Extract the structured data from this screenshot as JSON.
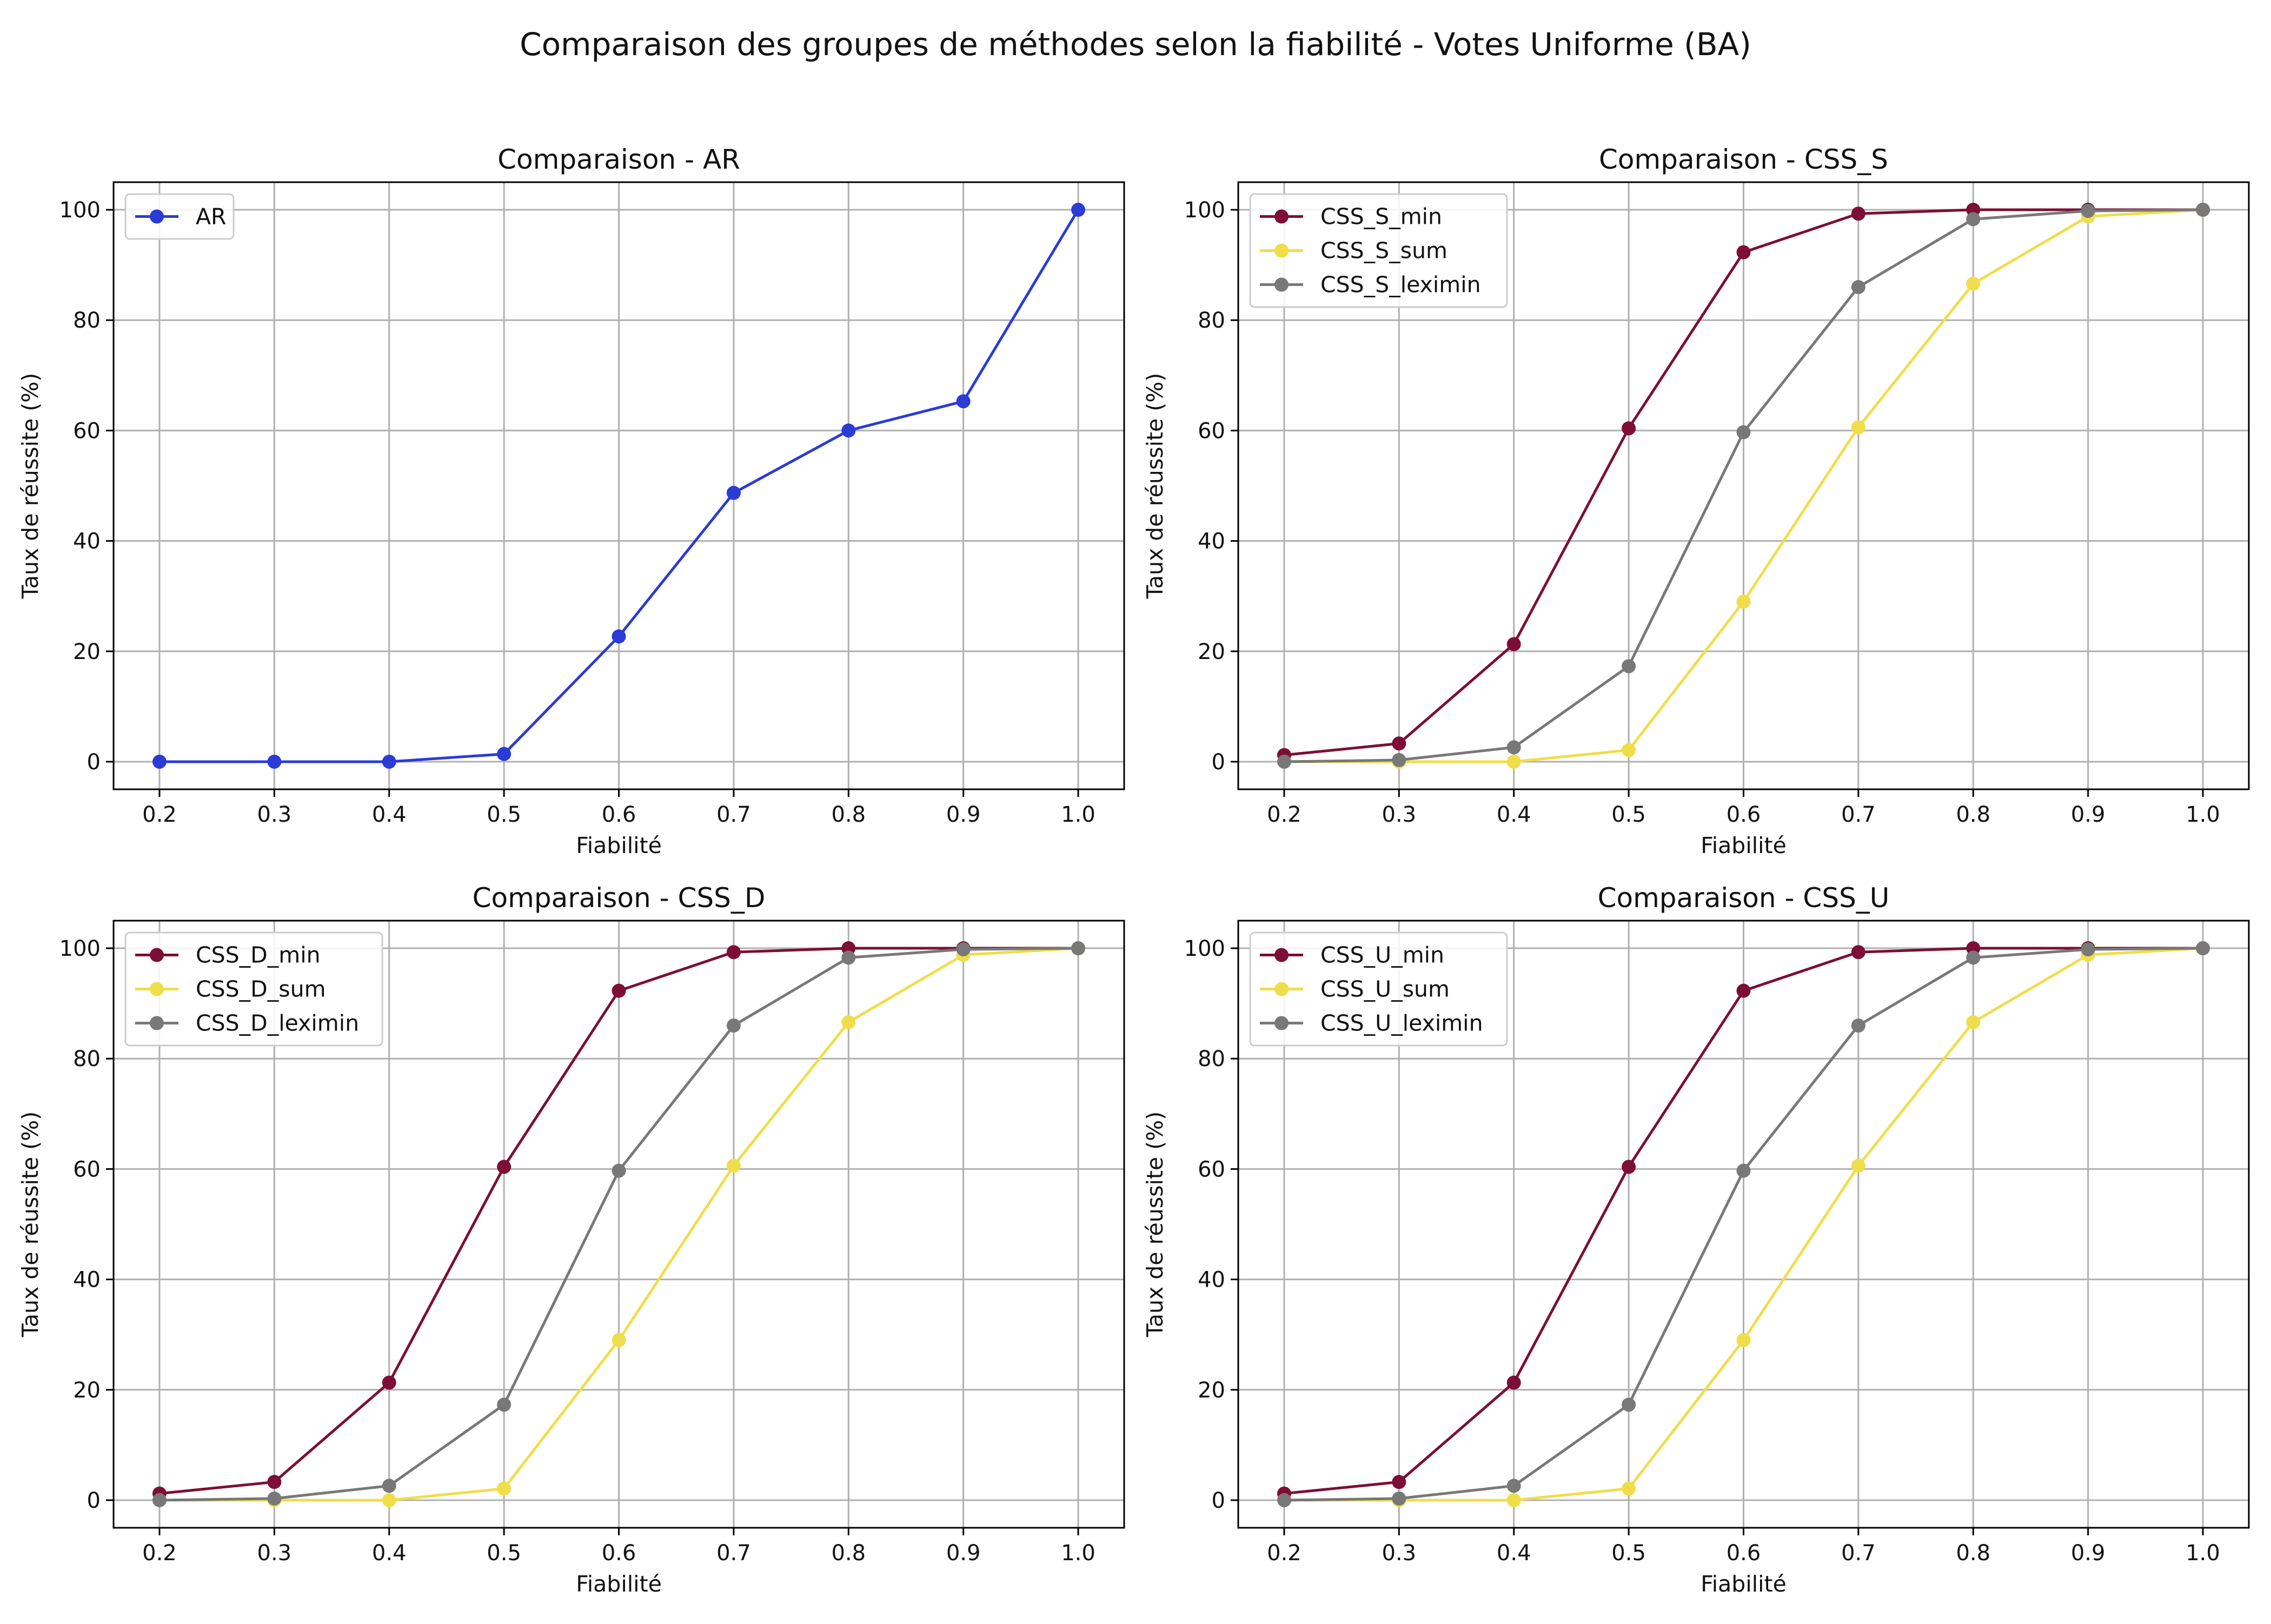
{
  "suptitle": "Comparaison des groupes de méthodes selon la fiabilité - Votes Uniforme (BA)",
  "chart_data": [
    {
      "type": "line",
      "title": "Comparaison - AR",
      "xlabel": "Fiabilité",
      "ylabel": "Taux de réussite (%)",
      "x": [
        0.2,
        0.3,
        0.4,
        0.5,
        0.6,
        0.7,
        0.8,
        0.9,
        1.0
      ],
      "xticks": [
        "0.2",
        "0.3",
        "0.4",
        "0.5",
        "0.6",
        "0.7",
        "0.8",
        "0.9",
        "1.0"
      ],
      "yticks": [
        "0",
        "20",
        "40",
        "60",
        "80",
        "100"
      ],
      "xlim": [
        0.16,
        1.04
      ],
      "ylim": [
        -5,
        105
      ],
      "grid": true,
      "legend_position": "upper-left",
      "series": [
        {
          "name": "AR",
          "color": "#2b3bd6",
          "values": [
            0,
            0,
            0,
            1.4,
            22.7,
            48.7,
            60,
            65.3,
            100
          ]
        }
      ]
    },
    {
      "type": "line",
      "title": "Comparaison - CSS_S",
      "xlabel": "Fiabilité",
      "ylabel": "Taux de réussite (%)",
      "x": [
        0.2,
        0.3,
        0.4,
        0.5,
        0.6,
        0.7,
        0.8,
        0.9,
        1.0
      ],
      "xticks": [
        "0.2",
        "0.3",
        "0.4",
        "0.5",
        "0.6",
        "0.7",
        "0.8",
        "0.9",
        "1.0"
      ],
      "yticks": [
        "0",
        "20",
        "40",
        "60",
        "80",
        "100"
      ],
      "xlim": [
        0.16,
        1.04
      ],
      "ylim": [
        -5,
        105
      ],
      "grid": true,
      "legend_position": "upper-left",
      "series": [
        {
          "name": "CSS_S_min",
          "color": "#7d0e35",
          "values": [
            1.2,
            3.3,
            21.3,
            60.4,
            92.3,
            99.3,
            100,
            100,
            100
          ]
        },
        {
          "name": "CSS_S_sum",
          "color": "#f0dd4a",
          "values": [
            0,
            0,
            0,
            2.1,
            29,
            60.6,
            86.6,
            98.8,
            100
          ]
        },
        {
          "name": "CSS_S_leximin",
          "color": "#787878",
          "values": [
            0,
            0.3,
            2.6,
            17.3,
            59.7,
            86,
            98.3,
            99.8,
            100
          ]
        }
      ]
    },
    {
      "type": "line",
      "title": "Comparaison - CSS_D",
      "xlabel": "Fiabilité",
      "ylabel": "Taux de réussite (%)",
      "x": [
        0.2,
        0.3,
        0.4,
        0.5,
        0.6,
        0.7,
        0.8,
        0.9,
        1.0
      ],
      "xticks": [
        "0.2",
        "0.3",
        "0.4",
        "0.5",
        "0.6",
        "0.7",
        "0.8",
        "0.9",
        "1.0"
      ],
      "yticks": [
        "0",
        "20",
        "40",
        "60",
        "80",
        "100"
      ],
      "xlim": [
        0.16,
        1.04
      ],
      "ylim": [
        -5,
        105
      ],
      "grid": true,
      "legend_position": "upper-left",
      "series": [
        {
          "name": "CSS_D_min",
          "color": "#7d0e35",
          "values": [
            1.2,
            3.3,
            21.3,
            60.4,
            92.3,
            99.3,
            100,
            100,
            100
          ]
        },
        {
          "name": "CSS_D_sum",
          "color": "#f0dd4a",
          "values": [
            0,
            0,
            0,
            2.1,
            29,
            60.6,
            86.6,
            98.8,
            100
          ]
        },
        {
          "name": "CSS_D_leximin",
          "color": "#787878",
          "values": [
            0,
            0.3,
            2.6,
            17.3,
            59.7,
            86,
            98.3,
            99.8,
            100
          ]
        }
      ]
    },
    {
      "type": "line",
      "title": "Comparaison - CSS_U",
      "xlabel": "Fiabilité",
      "ylabel": "Taux de réussite (%)",
      "x": [
        0.2,
        0.3,
        0.4,
        0.5,
        0.6,
        0.7,
        0.8,
        0.9,
        1.0
      ],
      "xticks": [
        "0.2",
        "0.3",
        "0.4",
        "0.5",
        "0.6",
        "0.7",
        "0.8",
        "0.9",
        "1.0"
      ],
      "yticks": [
        "0",
        "20",
        "40",
        "60",
        "80",
        "100"
      ],
      "xlim": [
        0.16,
        1.04
      ],
      "ylim": [
        -5,
        105
      ],
      "grid": true,
      "legend_position": "upper-left",
      "series": [
        {
          "name": "CSS_U_min",
          "color": "#7d0e35",
          "values": [
            1.2,
            3.3,
            21.3,
            60.4,
            92.3,
            99.3,
            100,
            100,
            100
          ]
        },
        {
          "name": "CSS_U_sum",
          "color": "#f0dd4a",
          "values": [
            0,
            0,
            0,
            2.1,
            29,
            60.6,
            86.6,
            98.8,
            100
          ]
        },
        {
          "name": "CSS_U_leximin",
          "color": "#787878",
          "values": [
            0,
            0.3,
            2.6,
            17.3,
            59.7,
            86,
            98.3,
            99.8,
            100
          ]
        }
      ]
    }
  ]
}
